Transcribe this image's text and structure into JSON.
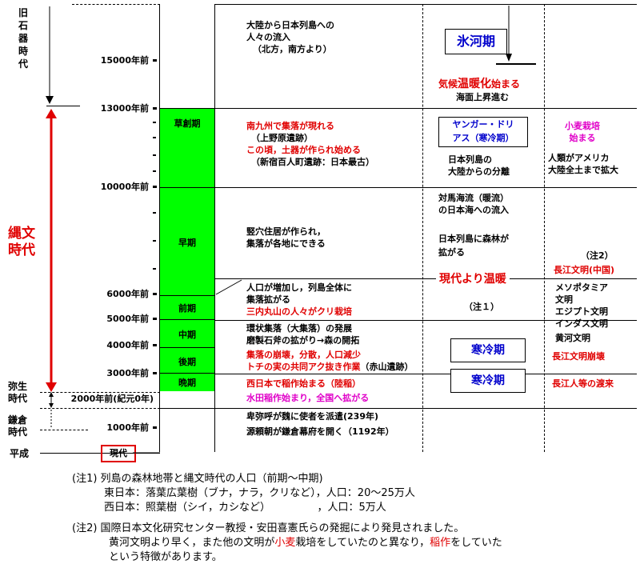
{
  "left_labels": {
    "paleolithic": [
      "旧",
      "石",
      "器",
      "時",
      "代"
    ],
    "jomon": [
      "縄文",
      "時代"
    ],
    "yayoi": [
      "弥生",
      "時代"
    ],
    "kamakura": [
      "鎌倉",
      "時代"
    ],
    "heisei": "平成"
  },
  "ticks": {
    "t15000": "15000年前",
    "t13000": "13000年前",
    "t10000": "10000年前",
    "t6000": "6000年前",
    "t5000": "5000年前",
    "t4000": "4000年前",
    "t3000": "3000年前",
    "t2000": "2000年前(紀元0年)",
    "t1000": "1000年前",
    "present": "現代"
  },
  "periods": {
    "sousouki": "草創期",
    "souki": "早期",
    "zenki": "前期",
    "chuuki": "中期",
    "kouki": "後期",
    "banki": "晩期"
  },
  "events": {
    "e1_l1": "大陸から日本列島への",
    "e1_l2": "人々の流入",
    "e1_l3": "（北方，南方より）",
    "e2_l1": "南九州で集落が現れる",
    "e2_l2": "（上野原遺跡）",
    "e2_l3a": "この頃，",
    "e2_l3b": "土器",
    "e2_l3c": "が作られ始める",
    "e2_l4": "（新宿百人町遺跡：日本最古）",
    "e3_l1": "竪穴住居が作られ，",
    "e3_l2": "集落が各地にできる",
    "e4_l1": "人口が増加し，列島全体に",
    "e4_l2": "集落拡がる",
    "e4_l3": "三内丸山の人々がクリ栽培",
    "e5_l1": "環状集落（大集落）の発展",
    "e5_l2": "磨製石斧の拡がり→森の開拓",
    "e6_l1": "集落の崩壊，分散，人口減少",
    "e6_l2a": "トチの実の共同アク抜き作業",
    "e6_l2b": "（赤山遺跡）",
    "e7": "西日本で稲作始まる（陸稲）",
    "e8": "水田稲作始まり，全国へ拡がる",
    "e9": "卑弥呼が魏に使者を派遣(239年)",
    "e10": "源頼朝が鎌倉幕府を開く（1192年）"
  },
  "climate": {
    "ice_age": "氷河期",
    "warming_a": "気候",
    "warming_b": "温暖化",
    "warming_c": "始まる",
    "sea_rise": "海面上昇進む",
    "dryas_l1": "ヤンガー・ドリ",
    "dryas_l2": "アス（寒冷期）",
    "sep_l1": "日本列島の",
    "sep_l2": "大陸からの分離",
    "tsushima_l1": "対馬海流（暖流）",
    "tsushima_l2": "の日本海への流入",
    "forest_l1": "日本列島に森林が",
    "forest_l2": "拡がる",
    "warmer": "現代より温暖",
    "note1": "（注１）",
    "cold1": "寒冷期",
    "cold2": "寒冷期"
  },
  "world": {
    "wheat_l1": "小麦栽培",
    "wheat_l2": "始まる",
    "america_l1": "人類がアメリカ",
    "america_l2": "大陸全土まで拡大",
    "note2": "（注2）",
    "changjiang": "長江文明(中国)",
    "civ_l1": "メソポタミア",
    "civ_l2": "文明",
    "civ_l3": "エジプト文明",
    "civ_l4": "インダス文明",
    "civ_l5": "黄河文明",
    "collapse": "長江文明崩壊",
    "migration": "長江人等の渡来"
  },
  "notes": {
    "n1_title": "(注1) 列島の森林地帯と縄文時代の人口（前期～中期)",
    "n1_east": "東日本：落葉広葉樹（ブナ，ナラ，クリなど），人口：20～25万人",
    "n1_west": "西日本：照葉樹（シイ，カシなど）　　　　　，人口：5万人",
    "n2_title": "(注2) 国際日本文化研究センター教授・安田喜憲氏らの発掘により発見されました。",
    "n2_l1a": "黄河文明より早く，また他の文明が",
    "n2_l1b": "小麦",
    "n2_l1c": "栽培をしていたのと異なり，",
    "n2_l1d": "稲作",
    "n2_l1e": "をしていた",
    "n2_l2": "という特徴があります。"
  },
  "colors": {
    "green": "#00ff00",
    "red": "#e00000",
    "magenta": "#e000c8",
    "blue": "#0000cc"
  }
}
